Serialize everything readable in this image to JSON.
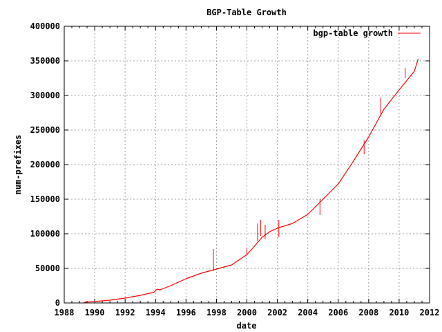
{
  "chart_data": {
    "type": "line",
    "title": "BGP-Table Growth",
    "xlabel": "date",
    "ylabel": "num-prefixes",
    "xlim": [
      1988,
      2012
    ],
    "ylim": [
      0,
      400000
    ],
    "x_ticks": [
      "1988",
      "1990",
      "1992",
      "1994",
      "1996",
      "1998",
      "2000",
      "2002",
      "2004",
      "2006",
      "2008",
      "2010",
      "2012"
    ],
    "y_ticks": [
      "0",
      "50000",
      "100000",
      "150000",
      "200000",
      "250000",
      "300000",
      "350000",
      "400000"
    ],
    "grid": true,
    "legend_position": "top-right",
    "series": [
      {
        "name": "bgp-table growth",
        "color": "#ff0000",
        "x": [
          1989.3,
          1990.0,
          1991.0,
          1992.0,
          1993.0,
          1993.9,
          1994.1,
          1994.3,
          1995.0,
          1996.0,
          1997.0,
          1998.0,
          1999.0,
          2000.0,
          2000.5,
          2001.0,
          2001.5,
          2002.0,
          2003.0,
          2004.0,
          2005.0,
          2006.0,
          2007.0,
          2008.0,
          2009.0,
          2010.0,
          2011.0,
          2011.25
        ],
        "y": [
          1000,
          2000,
          4000,
          7000,
          11000,
          15500,
          20000,
          19000,
          25000,
          35000,
          43000,
          49000,
          55000,
          70000,
          82000,
          95000,
          103000,
          108000,
          115000,
          128000,
          150000,
          172000,
          205000,
          240000,
          280000,
          308000,
          335000,
          353000
        ]
      }
    ],
    "spikes": [
      {
        "x": 1997.8,
        "y_low": 46000,
        "y_high": 78000
      },
      {
        "x": 2000.0,
        "y_low": 70000,
        "y_high": 80000
      },
      {
        "x": 2000.7,
        "y_low": 90000,
        "y_high": 115000
      },
      {
        "x": 2000.9,
        "y_low": 97000,
        "y_high": 120000
      },
      {
        "x": 2001.2,
        "y_low": 92000,
        "y_high": 113000
      },
      {
        "x": 2002.1,
        "y_low": 95000,
        "y_high": 120000
      },
      {
        "x": 2004.8,
        "y_low": 127000,
        "y_high": 150000
      },
      {
        "x": 2007.7,
        "y_low": 215000,
        "y_high": 235000
      },
      {
        "x": 2008.8,
        "y_low": 270000,
        "y_high": 297000
      },
      {
        "x": 2010.4,
        "y_low": 325000,
        "y_high": 340000
      }
    ]
  }
}
